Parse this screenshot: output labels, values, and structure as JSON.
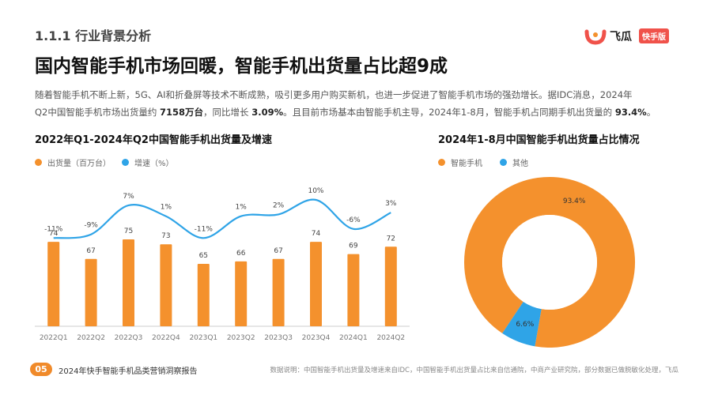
{
  "section": "1.1.1 行业背景分析",
  "logo": {
    "name": "飞瓜",
    "badge": "快手版"
  },
  "title": "国内智能手机市场回暖，智能手机出货量占比超9成",
  "body": {
    "p1": "随着智能手机不断上新，5G、AI和折叠屏等技术不断成熟，吸引更多用户购买新机，也进一步促进了智能手机市场的强劲增长。据IDC消息，2024年",
    "p2a": "Q2中国智能手机市场出货量约 ",
    "p2b": "7158万台",
    "p2c": "，同比增长 ",
    "p2d": "3.09%",
    "p2e": "。且目前市场基本由智能手机主导，2024年1-8月，智能手机占同期手机出货量的 ",
    "p2f": "93.4%",
    "p2g": "。"
  },
  "left_chart": {
    "title": "2022年Q1-2024年Q2中国智能手机出货量及增速",
    "legend": [
      "出货量（百万台）",
      "增速（%）"
    ]
  },
  "right_chart": {
    "title": "2024年1-8月中国智能手机出货量占比情况",
    "legend": [
      "智能手机",
      "其他"
    ]
  },
  "colors": {
    "orange": "#f4912d",
    "blue": "#2fa4e7",
    "accent": "#f08a2a"
  },
  "chart_data": [
    {
      "type": "bar",
      "categories": [
        "2022Q1",
        "2022Q2",
        "2022Q3",
        "2022Q4",
        "2023Q1",
        "2023Q2",
        "2023Q3",
        "2023Q4",
        "2024Q1",
        "2024Q2"
      ],
      "series": [
        {
          "name": "出货量（百万台）",
          "type": "bar",
          "values": [
            74,
            67,
            75,
            73,
            65,
            66,
            67,
            74,
            69,
            72
          ]
        },
        {
          "name": "增速（%）",
          "type": "line",
          "values": [
            -11,
            -9,
            7,
            1,
            -11,
            1,
            2,
            10,
            -6,
            3
          ],
          "labels": [
            "-11%",
            "-9%",
            "7%",
            "1%",
            "-11%",
            "1%",
            "2%",
            "10%",
            "-6%",
            "3%"
          ]
        }
      ]
    },
    {
      "type": "pie",
      "donut": true,
      "categories": [
        "智能手机",
        "其他"
      ],
      "values": [
        93.4,
        6.6
      ],
      "labels": [
        "93.4%",
        "6.6%"
      ]
    }
  ],
  "footer": {
    "page": "05",
    "report": "2024年快手智能手机品类营销洞察报告",
    "source": "数据说明：中国智能手机出货量及增速来自IDC，中国智能手机出货量占比来自信通院，中商产业研究院，部分数据已做脱敏化处理，飞瓜"
  }
}
